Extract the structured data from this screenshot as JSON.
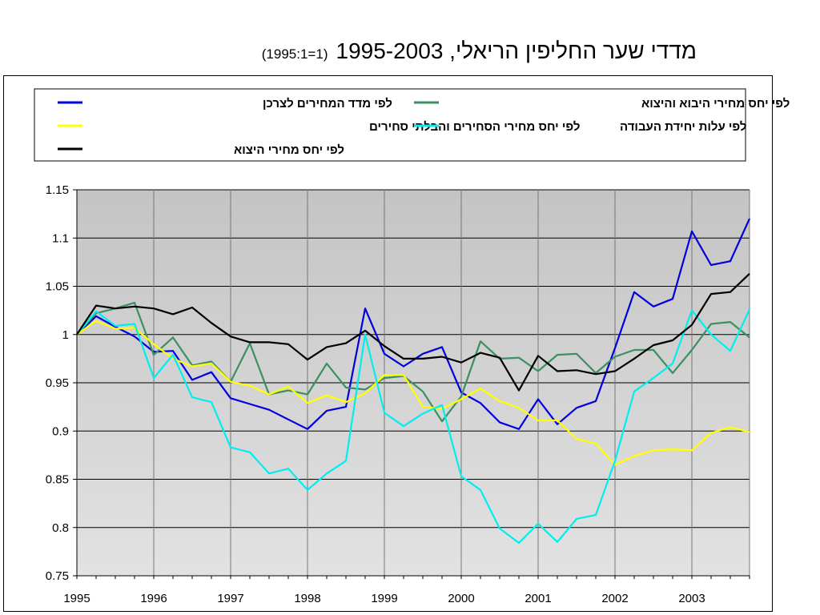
{
  "title": "מדדי שער החליפין הריאלי, 1995-2003",
  "title_note": "(1=1995:1)",
  "chart_data": {
    "type": "line",
    "title": "מדדי שער החליפין הריאלי, 1995-2003",
    "subtitle": "(1=1995:1)",
    "xlabel": "",
    "ylabel": "",
    "ylim": [
      0.75,
      1.15
    ],
    "yticks": [
      "0.75",
      "0.8",
      "0.85",
      "0.9",
      "0.95",
      "1",
      "1.05",
      "1.1",
      "1.15"
    ],
    "xticks": [
      "1995",
      "1996",
      "1997",
      "1998",
      "1999",
      "2000",
      "2001",
      "2002",
      "2003"
    ],
    "grid": true,
    "legend_position": "top",
    "x": [
      "1995Q1",
      "1995Q2",
      "1995Q3",
      "1995Q4",
      "1996Q1",
      "1996Q2",
      "1996Q3",
      "1996Q4",
      "1997Q1",
      "1997Q2",
      "1997Q3",
      "1997Q4",
      "1998Q1",
      "1998Q2",
      "1998Q3",
      "1998Q4",
      "1999Q1",
      "1999Q2",
      "1999Q3",
      "1999Q4",
      "2000Q1",
      "2000Q2",
      "2000Q3",
      "2000Q4",
      "2001Q1",
      "2001Q2",
      "2001Q3",
      "2001Q4",
      "2002Q1",
      "2002Q2",
      "2002Q3",
      "2002Q4",
      "2003Q1",
      "2003Q2",
      "2003Q3",
      "2003Q4"
    ],
    "series": [
      {
        "name": "לפי מדד המחירים לצרכן",
        "color": "#0000dd",
        "values": [
          1.0,
          1.019,
          1.008,
          0.998,
          0.982,
          0.983,
          0.953,
          0.961,
          0.934,
          0.928,
          0.922,
          0.912,
          0.902,
          0.921,
          0.925,
          1.027,
          0.98,
          0.967,
          0.98,
          0.987,
          0.94,
          0.929,
          0.909,
          0.902,
          0.933,
          0.907,
          0.924,
          0.931,
          0.986,
          1.044,
          1.029,
          1.037,
          1.107,
          1.072,
          1.076,
          1.12
        ]
      },
      {
        "name": "לפי יחס מחירי היבוא והיצוא",
        "color": "#3a9060",
        "values": [
          1.0,
          1.022,
          1.027,
          1.033,
          0.979,
          0.997,
          0.968,
          0.972,
          0.951,
          0.991,
          0.938,
          0.942,
          0.938,
          0.97,
          0.945,
          0.943,
          0.955,
          0.957,
          0.941,
          0.91,
          0.936,
          0.993,
          0.975,
          0.976,
          0.962,
          0.979,
          0.98,
          0.96,
          0.977,
          0.984,
          0.984,
          0.96,
          0.984,
          1.011,
          1.013,
          0.997
        ]
      },
      {
        "name": "לפי יחס מחירי הסחירים והבלתי סחירים",
        "color": "#ffff00",
        "values": [
          1.0,
          1.014,
          1.006,
          1.007,
          0.99,
          0.975,
          0.967,
          0.97,
          0.951,
          0.947,
          0.938,
          0.946,
          0.929,
          0.937,
          0.93,
          0.939,
          0.958,
          0.958,
          0.925,
          0.923,
          0.933,
          0.944,
          0.931,
          0.924,
          0.911,
          0.911,
          0.892,
          0.887,
          0.865,
          0.874,
          0.88,
          0.881,
          0.88,
          0.898,
          0.904,
          0.899
        ]
      },
      {
        "name": "לפי עלות יחידת העבודה",
        "color": "#00eeee",
        "values": [
          1.0,
          1.024,
          1.009,
          1.011,
          0.955,
          0.979,
          0.935,
          0.93,
          0.883,
          0.878,
          0.856,
          0.861,
          0.839,
          0.856,
          0.869,
          1.0,
          0.919,
          0.905,
          0.918,
          0.927,
          0.853,
          0.839,
          0.799,
          0.784,
          0.804,
          0.785,
          0.809,
          0.813,
          0.869,
          0.941,
          0.955,
          0.97,
          1.025,
          1.0,
          0.983,
          1.026
        ]
      },
      {
        "name": "לפי יחס מחירי היצוא",
        "color": "#000000",
        "values": [
          1.0,
          1.03,
          1.027,
          1.029,
          1.027,
          1.021,
          1.028,
          1.012,
          0.998,
          0.992,
          0.992,
          0.99,
          0.974,
          0.987,
          0.991,
          1.004,
          0.988,
          0.975,
          0.975,
          0.977,
          0.971,
          0.981,
          0.976,
          0.942,
          0.978,
          0.962,
          0.963,
          0.959,
          0.962,
          0.975,
          0.989,
          0.994,
          1.01,
          1.042,
          1.044,
          1.063
        ]
      }
    ]
  }
}
